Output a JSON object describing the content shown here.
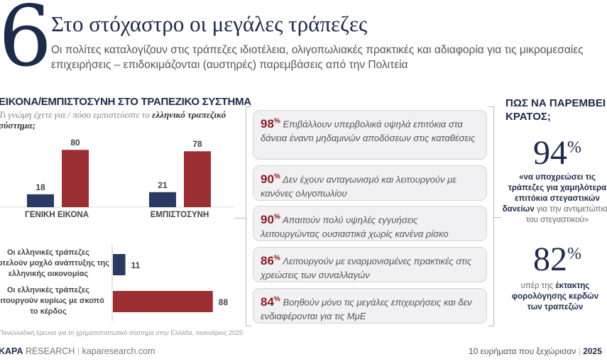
{
  "header": {
    "number": "6",
    "title": "Στο στόχαστρο οι μεγάλες τράπεζες",
    "subtitle": "Οι πολίτες καταλογίζουν στις τράπεζες ιδιοτέλεια, ολιγοπωλιακές πρακτικές και αδιαφορία για τις μικρομεσαίες επιχειρήσεις – επιδοκιμάζονται (αυστηρές) παρεμβάσεις από την Πολιτεία"
  },
  "left": {
    "section_title": "ΕΙΚΟΝΑ/ΕΜΠΙΣΤΟΣΥΝΗ ΣΤΟ ΤΡΑΠΕΖΙΚΟ ΣΥΣΤΗΜΑ",
    "question_pre": "Τι γνώμη έχετε για / πόσο εμπιστεύεστε το ",
    "question_bold": "ελληνικό τραπεζικό σύστημα;"
  },
  "chart_data": [
    {
      "type": "bar",
      "categories": [
        "ΓΕΝΙΚΗ ΕΙΚΟΝΑ",
        "ΕΜΠΙΣΤΟΣΥΝΗ"
      ],
      "series": [
        {
          "values": [
            18,
            21
          ],
          "color": "#2b3a63"
        },
        {
          "values": [
            80,
            78
          ],
          "color": "#9b2f33"
        }
      ]
    },
    {
      "type": "bar",
      "orientation": "horizontal",
      "categories": [
        "Οι ελληνικές τράπεζες αποτελούν μοχλό ανάπτυξης της ελληνικής οικονομίας",
        "Οι ελληνικές τράπεζες λειτουργούν κυρίως με σκοπό το κέρδος"
      ],
      "values": [
        11,
        88
      ],
      "colors": [
        "#2b3a63",
        "#9b2f33"
      ]
    }
  ],
  "middle": {
    "items": [
      {
        "pct": "98",
        "text": "Επιβάλλουν υπερβολικά υψηλά επιτόκια στα δάνεια έναντι μηδαμινών αποδόσεων στις καταθέσεις"
      },
      {
        "pct": "90",
        "text": "Δεν έχουν ανταγωνισμό και λειτουργούν με κανόνες ολιγοπωλίου"
      },
      {
        "pct": "90",
        "text": "Απαιτούν πολύ υψηλές εγγυήσεις λειτουργώντας ουσιαστικά χωρίς κανένα ρίσκο"
      },
      {
        "pct": "86",
        "text": "Λειτουργούν με εναρμονισμένες πρακτικές στις χρεώσεις των συναλλαγών"
      },
      {
        "pct": "84",
        "text": "Βοηθούν μόνο τις μεγάλες επιχειρήσεις και δεν ενδιαφέρονται για τις ΜμΕ"
      }
    ]
  },
  "right": {
    "title": "ΠΩΣ ΝΑ ΠΑΡΕΜΒΕΙ ΤΟ ΚΡΑΤΟΣ;",
    "stat1": {
      "value": "94",
      "bold": "«να υποχρεώσει τις τράπεζες για χαμηλότερα επιτόκια στεγαστικών δανείων",
      "rest": " για την αντιμετώπιση του στεγαστικού»"
    },
    "stat2": {
      "value": "82",
      "pre": "υπέρ της ",
      "bold": "έκτακτης φορολόγησης κερδών των τραπεζών"
    }
  },
  "footer": {
    "footnote": "Πανελλαδική έρευνα για το χρηματοπιστωτικό σύστημα στην Ελλάδα, Ιανουάριος 2025",
    "brand_bold": "KAPA",
    "brand": " RESEARCH",
    "site": "kaparesearch.com",
    "right_text": "10 ευρήματα που ξεχώρισαν",
    "right_year": "2025"
  },
  "percent_sign": "%"
}
